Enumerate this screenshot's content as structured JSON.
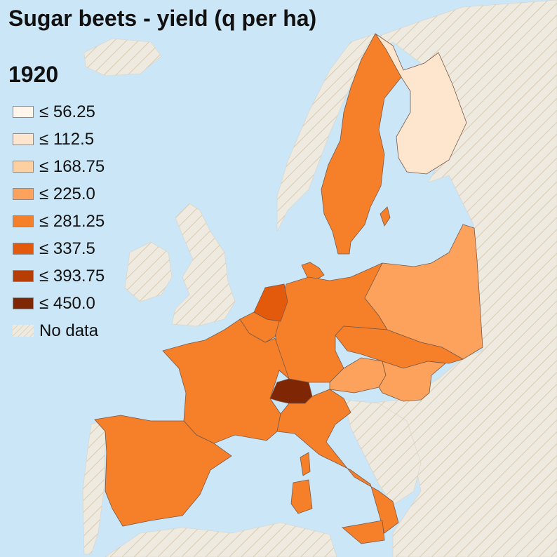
{
  "map": {
    "title": "Sugar beets - yield (q per ha)",
    "year": "1920",
    "colors": {
      "sea": "#cbe6f7",
      "nodata_fill": "#efeae0",
      "nodata_hatch": "#d9cbb0"
    },
    "legend": [
      {
        "label": "≤ 56.25",
        "color": "#fff5eb"
      },
      {
        "label": "≤ 112.5",
        "color": "#fee6ce"
      },
      {
        "label": "≤ 168.75",
        "color": "#fdd0a2"
      },
      {
        "label": "≤ 225.0",
        "color": "#fda25c"
      },
      {
        "label": "≤ 281.25",
        "color": "#f67f2a"
      },
      {
        "label": "≤ 337.5",
        "color": "#e35a0c"
      },
      {
        "label": "≤ 393.75",
        "color": "#b63d04"
      },
      {
        "label": "≤ 450.0",
        "color": "#7f2704"
      },
      {
        "label": "No data",
        "color": "nodata"
      }
    ],
    "regions": [
      {
        "name": "Finland",
        "class_index": 1
      },
      {
        "name": "Sweden",
        "class_index": 4
      },
      {
        "name": "Germany",
        "class_index": 4
      },
      {
        "name": "France",
        "class_index": 4
      },
      {
        "name": "Spain",
        "class_index": 4
      },
      {
        "name": "Italy",
        "class_index": 4
      },
      {
        "name": "Sicily",
        "class_index": 4
      },
      {
        "name": "Sardinia",
        "class_index": 4
      },
      {
        "name": "Corsica",
        "class_index": 4
      },
      {
        "name": "Denmark",
        "class_index": 4
      },
      {
        "name": "Czechoslovakia",
        "class_index": 4
      },
      {
        "name": "Netherlands",
        "class_index": 5
      },
      {
        "name": "Belgium",
        "class_index": 4
      },
      {
        "name": "Switzerland",
        "class_index": 7
      },
      {
        "name": "Austria",
        "class_index": 3
      },
      {
        "name": "Hungary",
        "class_index": 3
      },
      {
        "name": "Poland",
        "class_index": 3
      }
    ]
  }
}
